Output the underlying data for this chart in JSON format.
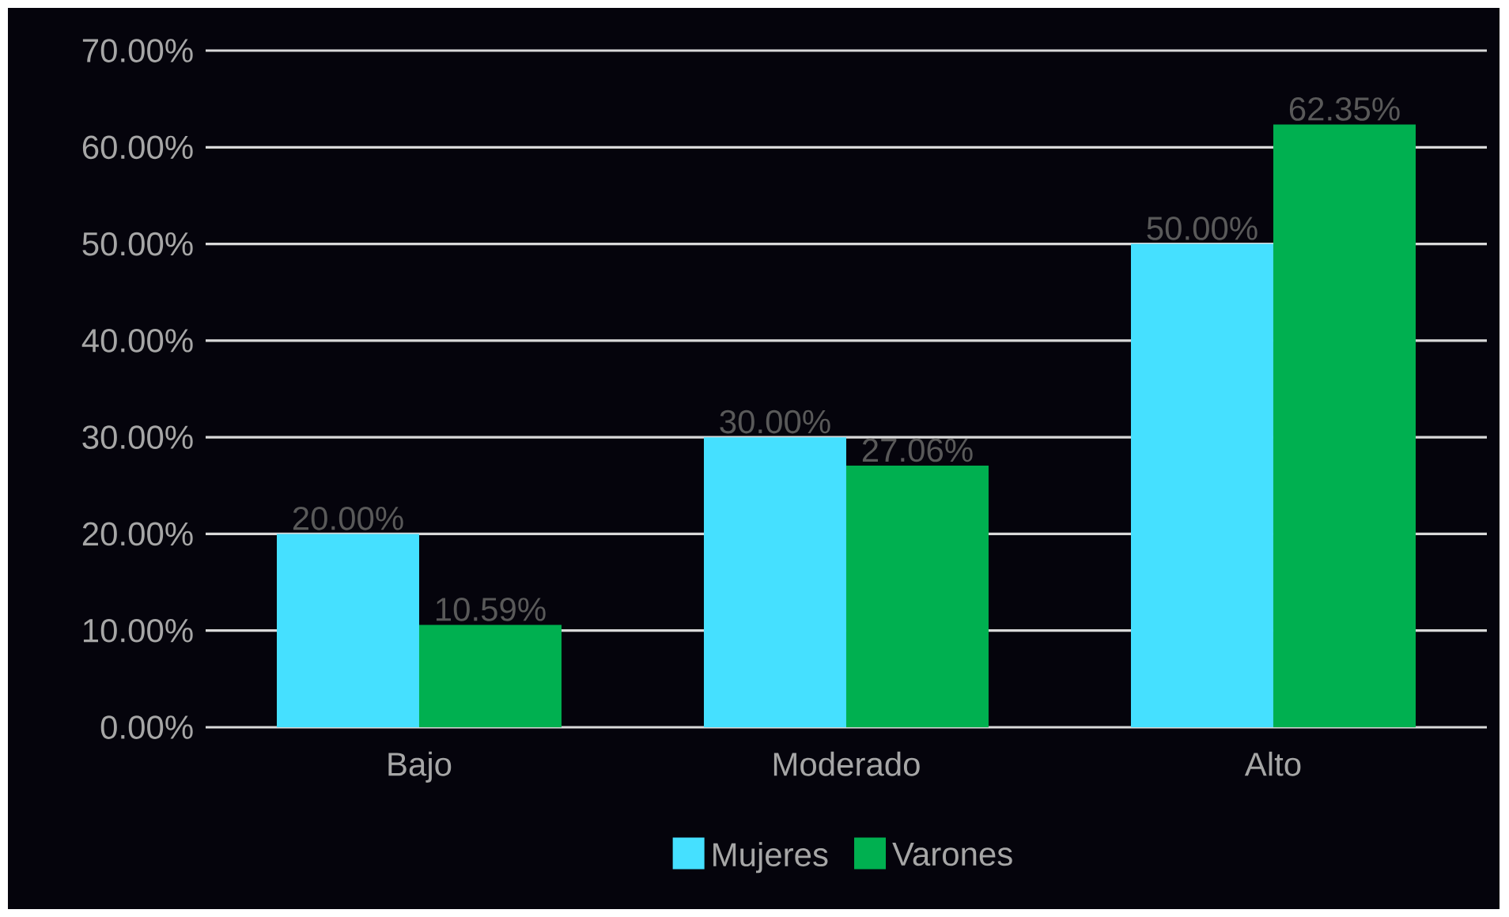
{
  "chart_data": {
    "type": "bar",
    "categories": [
      "Bajo",
      "Moderado",
      "Alto"
    ],
    "series": [
      {
        "name": "Mujeres",
        "color": "#45e0ff",
        "values": [
          20.0,
          30.0,
          50.0
        ],
        "value_labels": [
          "20.00%",
          "30.00%",
          "50.00%"
        ]
      },
      {
        "name": "Varones",
        "color": "#00b050",
        "values": [
          10.59,
          27.06,
          62.35
        ],
        "value_labels": [
          "10.59%",
          "27.06%",
          "62.35%"
        ]
      }
    ],
    "ylim": [
      0,
      70
    ],
    "yticks": [
      {
        "value": 0,
        "label": "0.00%"
      },
      {
        "value": 10,
        "label": "10.00%"
      },
      {
        "value": 20,
        "label": "20.00%"
      },
      {
        "value": 30,
        "label": "30.00%"
      },
      {
        "value": 40,
        "label": "40.00%"
      },
      {
        "value": 50,
        "label": "50.00%"
      },
      {
        "value": 60,
        "label": "60.00%"
      },
      {
        "value": 70,
        "label": "70.00%"
      }
    ],
    "grid": "y",
    "legend": "bottom"
  }
}
